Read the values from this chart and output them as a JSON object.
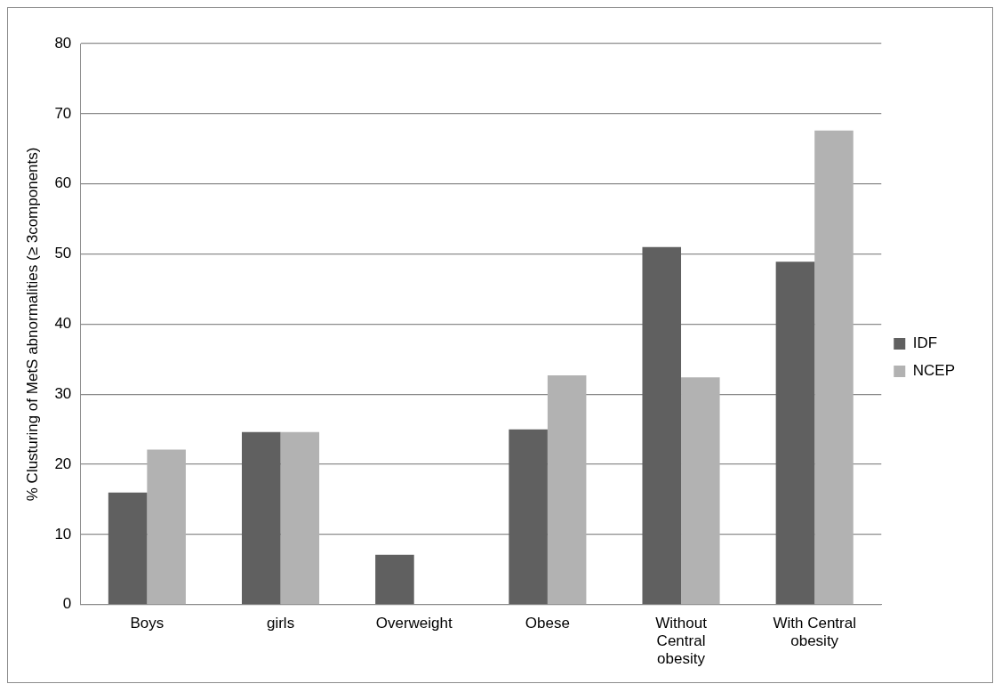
{
  "chart_data": {
    "type": "bar",
    "ylabel": "% Clusturing of MetS abnormalities (≥ 3components)",
    "categories": [
      "Boys",
      "girls",
      "Overweight",
      "Obese",
      "Without Central obesity",
      "With Central obesity"
    ],
    "series": [
      {
        "name": "IDF",
        "color": "#606060",
        "values": [
          16,
          24.6,
          7.1,
          25,
          51,
          48.9
        ]
      },
      {
        "name": "NCEP",
        "color": "#b2b2b2",
        "values": [
          22.1,
          24.6,
          0,
          32.7,
          32.4,
          67.6
        ]
      }
    ],
    "ylim": [
      0,
      80
    ],
    "yticks": [
      0,
      10,
      20,
      30,
      40,
      50,
      60,
      70,
      80
    ],
    "grid": "y",
    "legend": "right"
  }
}
